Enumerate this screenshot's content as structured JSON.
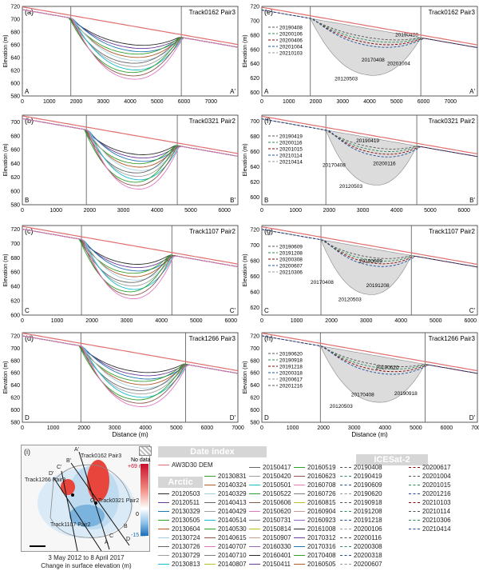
{
  "panels": [
    {
      "id": "a",
      "label": "(a)",
      "title": "Track0162 Pair3",
      "start": "A",
      "end": "A'",
      "xmax": 8000,
      "xticks": [
        0,
        1000,
        2000,
        3000,
        4000,
        5000,
        6000,
        7000
      ],
      "yticks": [
        580,
        600,
        620,
        640,
        660,
        680,
        700,
        720
      ],
      "ymin": 580,
      "ymax": 720,
      "vlines": [
        1800,
        5900
      ],
      "col": 0,
      "row": 0
    },
    {
      "id": "b",
      "label": "(b)",
      "title": "Track0321 Pair2",
      "start": "B",
      "end": "B'",
      "xmax": 6400,
      "xticks": [
        0,
        1000,
        2000,
        3000,
        4000,
        5000,
        6000
      ],
      "yticks": [
        580,
        600,
        620,
        640,
        660,
        680,
        700
      ],
      "ymin": 580,
      "ymax": 710,
      "vlines": [
        1900,
        4600
      ],
      "col": 0,
      "row": 1
    },
    {
      "id": "c",
      "label": "(c)",
      "title": "Track1107 Pair2",
      "start": "C",
      "end": "C'",
      "xmax": 6200,
      "xticks": [
        0,
        1000,
        2000,
        3000,
        4000,
        5000,
        6000
      ],
      "yticks": [
        600,
        620,
        640,
        660,
        680,
        700,
        720
      ],
      "ymin": 600,
      "ymax": 725,
      "vlines": [
        1700,
        4300
      ],
      "col": 0,
      "row": 2
    },
    {
      "id": "d",
      "label": "(d)",
      "title": "Track1266 Pair3",
      "start": "D",
      "end": "D'",
      "xmax": 7000,
      "xticks": [
        0,
        1000,
        2000,
        3000,
        4000,
        5000,
        6000,
        7000
      ],
      "yticks": [
        580,
        600,
        620,
        640,
        660,
        680,
        700,
        720
      ],
      "ymin": 580,
      "ymax": 725,
      "vlines": [
        1900,
        5300
      ],
      "col": 0,
      "row": 3,
      "xlabel": "Distance (m)"
    },
    {
      "id": "e",
      "label": "(e)",
      "title": "Track0162 Pair3",
      "start": "A",
      "end": "A'",
      "xmax": 8000,
      "xticks": [
        0,
        1000,
        2000,
        3000,
        4000,
        5000,
        6000,
        7000
      ],
      "yticks": [
        600,
        620,
        640,
        660,
        680,
        700,
        720
      ],
      "ymin": 595,
      "ymax": 720,
      "vlines": [
        1800,
        5900
      ],
      "col": 1,
      "row": 0
    },
    {
      "id": "f",
      "label": "(f)",
      "title": "Track0321 Pair2",
      "start": "B",
      "end": "B'",
      "xmax": 6400,
      "xticks": [
        0,
        1000,
        2000,
        3000,
        4000,
        5000,
        6000
      ],
      "yticks": [
        600,
        620,
        640,
        660,
        680,
        700
      ],
      "ymin": 590,
      "ymax": 708,
      "vlines": [
        1900,
        4600
      ],
      "col": 1,
      "row": 1
    },
    {
      "id": "g",
      "label": "(g)",
      "title": "Track1107 Pair2",
      "start": "C",
      "end": "C'",
      "xmax": 6200,
      "xticks": [
        0,
        1000,
        2000,
        3000,
        4000,
        5000,
        6000
      ],
      "yticks": [
        620,
        640,
        660,
        680,
        700,
        720
      ],
      "ymin": 610,
      "ymax": 725,
      "vlines": [
        1700,
        4300
      ],
      "col": 1,
      "row": 2
    },
    {
      "id": "h",
      "label": "(h)",
      "title": "Track1266 Pair3",
      "start": "D",
      "end": "D'",
      "xmax": 7000,
      "xticks": [
        0,
        1000,
        2000,
        3000,
        4000,
        5000,
        6000,
        7000
      ],
      "yticks": [
        580,
        600,
        620,
        640,
        660,
        680,
        700,
        720
      ],
      "ymin": 580,
      "ymax": 725,
      "vlines": [
        1900,
        5300
      ],
      "col": 1,
      "row": 3,
      "xlabel": "Distance (m)"
    }
  ],
  "ylabel": "Elevation (m)",
  "panel_legends": {
    "e": [
      "20190408",
      "20200106",
      "20200406",
      "20201004",
      "20210103"
    ],
    "f": [
      "20190419",
      "20200116",
      "20201015",
      "20210114",
      "20210414"
    ],
    "g": [
      "20190609",
      "20191208",
      "20200308",
      "20200607",
      "20210306"
    ],
    "h": [
      "20190620",
      "20190918",
      "20191218",
      "20200318",
      "20200617",
      "20201216"
    ]
  },
  "annotations": {
    "e": [
      {
        "t": "20190408",
        "x": 4950,
        "y": 678
      },
      {
        "t": "20170408",
        "x": 3700,
        "y": 643
      },
      {
        "t": "20201004",
        "x": 4650,
        "y": 638
      },
      {
        "t": "20120503",
        "x": 2700,
        "y": 617
      }
    ],
    "f": [
      {
        "t": "20190419",
        "x": 2800,
        "y": 672
      },
      {
        "t": "20170408",
        "x": 1800,
        "y": 640
      },
      {
        "t": "20200116",
        "x": 3300,
        "y": 642
      },
      {
        "t": "20120503",
        "x": 2300,
        "y": 612
      }
    ],
    "g": [
      {
        "t": "20190609",
        "x": 2800,
        "y": 677
      },
      {
        "t": "20170408",
        "x": 1400,
        "y": 650
      },
      {
        "t": "20191208",
        "x": 3000,
        "y": 646
      },
      {
        "t": "20120503",
        "x": 2200,
        "y": 628
      }
    ],
    "h": [
      {
        "t": "20190620",
        "x": 3700,
        "y": 666
      },
      {
        "t": "20170408",
        "x": 2900,
        "y": 622
      },
      {
        "t": "20190918",
        "x": 4300,
        "y": 624
      },
      {
        "t": "20120503",
        "x": 2200,
        "y": 603
      }
    ]
  },
  "legend": {
    "header_date": "Date index",
    "header_dem": "Arctic DEM",
    "header_ice": "ICESat-2",
    "aw3d": "AW3D30 DEM",
    "col1": [
      "20120503",
      "20120511",
      "20130329",
      "20130505",
      "20130604",
      "20130724",
      "20130726",
      "20130729",
      "20130813"
    ],
    "col2": [
      "20130831",
      "20140324",
      "20140329",
      "20140413",
      "20140429",
      "20140514",
      "20140530",
      "20140615",
      "20140707",
      "20140710",
      "20140807"
    ],
    "col3": [
      "20150417",
      "20150420",
      "20150501",
      "20150522",
      "20150606",
      "20150620",
      "20150731",
      "20150814",
      "20150907",
      "20160330",
      "20160401",
      "20150411"
    ],
    "col4": [
      "20160519",
      "20160623",
      "20160708",
      "20160726",
      "20160815",
      "20160904",
      "20160923",
      "20161008",
      "20170312",
      "20170316",
      "20170408",
      "20160505"
    ],
    "col5": [
      "20190408",
      "20190419",
      "20190609",
      "20190620",
      "20190918",
      "20191208",
      "20191218",
      "20200106",
      "20200116",
      "20200308",
      "20200318",
      "20200607"
    ],
    "col6": [
      "20200617",
      "20201004",
      "20201015",
      "20201216",
      "20210103",
      "20210114",
      "20210306",
      "20210414"
    ]
  },
  "map": {
    "label": "(i)",
    "nodata": "No data",
    "cbar_max": "+69 m",
    "cbar_zero": "0",
    "cbar_min": "-15 m",
    "tracks": [
      "Track0162 Pair3",
      "Track1266 Pair3",
      "Track0321 Pair2",
      "Track1107 Pair2"
    ],
    "points": [
      "A",
      "A'",
      "B",
      "B'",
      "C",
      "C'",
      "D",
      "D'",
      "G"
    ],
    "caption1": "3 May 2012 to 8 April 2017",
    "caption2": "Change in surface elevation (m)"
  },
  "colors": {
    "aw3d": "#e07070",
    "dem_palette": [
      "#2b2b2b",
      "#6a3d9a",
      "#1f78b4",
      "#33a02c",
      "#b15928",
      "#a6cee3",
      "#666666",
      "#9e9e9e",
      "#17becf",
      "#2ca02c",
      "#8c564b",
      "#e377c2",
      "#7f7f7f",
      "#bcbd22",
      "#c49c94",
      "#9467bd"
    ]
  }
}
